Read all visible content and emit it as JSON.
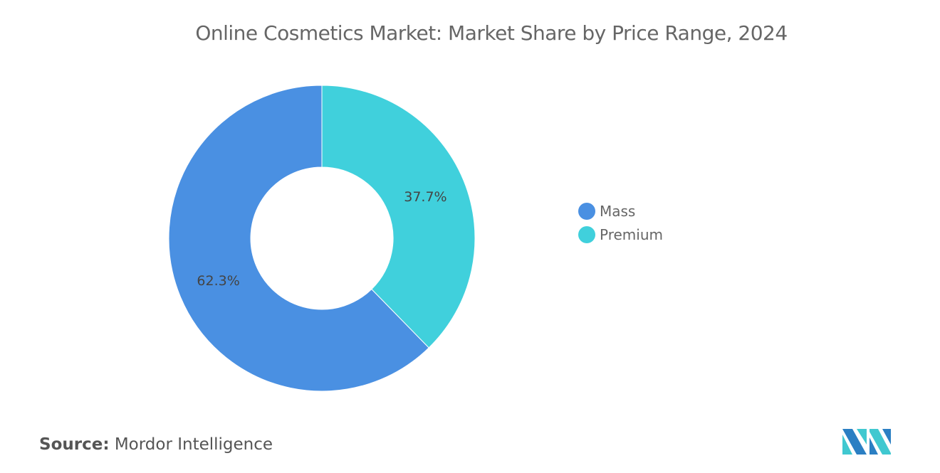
{
  "chart_data": {
    "type": "pie",
    "donut": true,
    "title": "Online Cosmetics Market: Market Share by Price Range, 2024",
    "slices": [
      {
        "label": "Premium",
        "value": 37.7,
        "display": "37.7%",
        "color": "#40d0dc"
      },
      {
        "label": "Mass",
        "value": 62.3,
        "display": "62.3%",
        "color": "#4a90e2"
      }
    ],
    "legend": {
      "placement": "right",
      "entries": [
        {
          "label": "Mass",
          "color": "#4a90e2"
        },
        {
          "label": "Premium",
          "color": "#40d0dc"
        }
      ]
    }
  },
  "source": {
    "label": "Source:",
    "value": "Mordor Intelligence"
  },
  "logo": {
    "text": "Mordor Intelligence"
  }
}
